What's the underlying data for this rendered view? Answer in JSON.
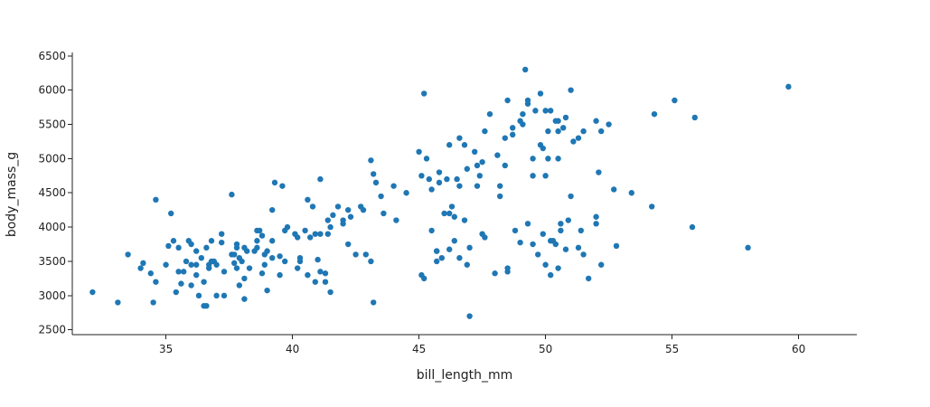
{
  "colors": {
    "marker": "#1f77b4",
    "axis": "#222222",
    "background": "#ffffff"
  },
  "chart_data": {
    "type": "scatter",
    "title": "",
    "xlabel": "bill_length_mm",
    "ylabel": "body_mass_g",
    "xlim": [
      31.3,
      62.3
    ],
    "ylim": [
      2430,
      6550
    ],
    "xticks": [
      35,
      40,
      45,
      50,
      55,
      60
    ],
    "yticks": [
      2500,
      3000,
      3500,
      4000,
      4500,
      5000,
      5500,
      6000,
      6500
    ],
    "grid": false,
    "series": [
      {
        "points": [
          [
            32.1,
            3050
          ],
          [
            33.1,
            2900
          ],
          [
            33.5,
            3600
          ],
          [
            34.0,
            3400
          ],
          [
            34.1,
            3475
          ],
          [
            34.4,
            3325
          ],
          [
            34.5,
            2900
          ],
          [
            34.6,
            3200
          ],
          [
            34.6,
            4400
          ],
          [
            35.0,
            3450
          ],
          [
            35.1,
            3725
          ],
          [
            35.2,
            4200
          ],
          [
            35.3,
            3800
          ],
          [
            35.4,
            3050
          ],
          [
            35.5,
            3700
          ],
          [
            35.6,
            3175
          ],
          [
            35.7,
            3350
          ],
          [
            35.8,
            3500
          ],
          [
            35.9,
            3800
          ],
          [
            36.0,
            3150
          ],
          [
            36.0,
            3450
          ],
          [
            36.2,
            3300
          ],
          [
            36.2,
            3650
          ],
          [
            36.3,
            3000
          ],
          [
            36.4,
            3550
          ],
          [
            36.5,
            3200
          ],
          [
            36.5,
            2850
          ],
          [
            36.6,
            3700
          ],
          [
            36.6,
            2850
          ],
          [
            36.7,
            3400
          ],
          [
            36.7,
            3450
          ],
          [
            36.8,
            3800
          ],
          [
            36.8,
            3500
          ],
          [
            36.9,
            3500
          ],
          [
            37.0,
            3000
          ],
          [
            37.2,
            3900
          ],
          [
            37.2,
            3775
          ],
          [
            37.3,
            3350
          ],
          [
            37.3,
            3000
          ],
          [
            37.6,
            4475
          ],
          [
            37.6,
            3600
          ],
          [
            37.7,
            3600
          ],
          [
            37.7,
            3475
          ],
          [
            37.8,
            3700
          ],
          [
            37.8,
            3400
          ],
          [
            37.8,
            3750
          ],
          [
            37.9,
            3150
          ],
          [
            37.9,
            3550
          ],
          [
            38.0,
            3500
          ],
          [
            38.1,
            3700
          ],
          [
            38.1,
            3250
          ],
          [
            38.1,
            2950
          ],
          [
            38.2,
            3650
          ],
          [
            38.3,
            3400
          ],
          [
            38.5,
            3650
          ],
          [
            38.6,
            3800
          ],
          [
            38.6,
            3950
          ],
          [
            38.7,
            3950
          ],
          [
            38.8,
            3325
          ],
          [
            38.8,
            3875
          ],
          [
            38.9,
            3600
          ],
          [
            39.0,
            3650
          ],
          [
            39.2,
            4250
          ],
          [
            39.2,
            3550
          ],
          [
            39.2,
            3800
          ],
          [
            39.3,
            4650
          ],
          [
            39.5,
            3575
          ],
          [
            39.6,
            4600
          ],
          [
            39.7,
            3950
          ],
          [
            39.8,
            4000
          ],
          [
            40.1,
            3900
          ],
          [
            40.2,
            3400
          ],
          [
            40.3,
            3550
          ],
          [
            40.5,
            3950
          ],
          [
            40.6,
            4400
          ],
          [
            40.7,
            3850
          ],
          [
            40.8,
            4300
          ],
          [
            40.9,
            3200
          ],
          [
            41.0,
            3525
          ],
          [
            41.1,
            4700
          ],
          [
            41.1,
            3350
          ],
          [
            41.3,
            3325
          ],
          [
            41.4,
            4100
          ],
          [
            41.5,
            3050
          ],
          [
            41.6,
            4175
          ],
          [
            41.8,
            4300
          ],
          [
            42.0,
            4050
          ],
          [
            42.2,
            4250
          ],
          [
            42.3,
            4150
          ],
          [
            42.5,
            3600
          ],
          [
            42.7,
            4300
          ],
          [
            42.8,
            4250
          ],
          [
            42.9,
            3600
          ],
          [
            43.1,
            4975
          ],
          [
            43.2,
            2900
          ],
          [
            43.2,
            4775
          ],
          [
            43.3,
            4650
          ],
          [
            43.5,
            4450
          ],
          [
            43.6,
            4200
          ],
          [
            44.1,
            4100
          ],
          [
            44.5,
            4500
          ],
          [
            45.1,
            4750
          ],
          [
            45.2,
            5950
          ],
          [
            45.2,
            3250
          ],
          [
            45.4,
            4700
          ],
          [
            45.5,
            3950
          ],
          [
            45.7,
            3650
          ],
          [
            45.8,
            4650
          ],
          [
            46.1,
            4700
          ],
          [
            46.2,
            4200
          ],
          [
            46.4,
            4150
          ],
          [
            46.5,
            4700
          ],
          [
            46.6,
            4600
          ],
          [
            46.8,
            4100
          ],
          [
            47.0,
            2700
          ],
          [
            47.2,
            5100
          ],
          [
            47.3,
            4900
          ],
          [
            47.5,
            3900
          ],
          [
            47.6,
            5400
          ],
          [
            47.8,
            5650
          ],
          [
            48.1,
            5050
          ],
          [
            48.2,
            4450
          ],
          [
            48.4,
            5300
          ],
          [
            48.5,
            3400
          ],
          [
            48.7,
            5350
          ],
          [
            48.8,
            3950
          ],
          [
            49.0,
            5550
          ],
          [
            49.1,
            5500
          ],
          [
            49.2,
            6300
          ],
          [
            49.3,
            5800
          ],
          [
            49.5,
            4750
          ],
          [
            49.6,
            5700
          ],
          [
            49.8,
            5950
          ],
          [
            50.0,
            5700
          ],
          [
            50.1,
            5000
          ],
          [
            50.2,
            3800
          ],
          [
            50.3,
            3800
          ],
          [
            50.4,
            5550
          ],
          [
            50.5,
            5400
          ],
          [
            50.6,
            4050
          ],
          [
            50.7,
            5450
          ],
          [
            50.8,
            5600
          ],
          [
            51.0,
            6000
          ],
          [
            51.1,
            5250
          ],
          [
            51.3,
            5300
          ],
          [
            51.5,
            5400
          ],
          [
            51.7,
            3250
          ],
          [
            52.0,
            5550
          ],
          [
            52.1,
            4800
          ],
          [
            52.2,
            5400
          ],
          [
            52.5,
            5500
          ],
          [
            52.7,
            4550
          ],
          [
            52.8,
            3725
          ],
          [
            53.4,
            4500
          ],
          [
            54.2,
            4300
          ],
          [
            54.3,
            5650
          ],
          [
            55.1,
            5850
          ],
          [
            55.8,
            4000
          ],
          [
            55.9,
            5600
          ],
          [
            58.0,
            3700
          ],
          [
            59.6,
            6050
          ],
          [
            44.0,
            4600
          ],
          [
            45.0,
            5100
          ],
          [
            45.3,
            5000
          ],
          [
            45.5,
            4550
          ],
          [
            45.8,
            4800
          ],
          [
            46.2,
            5200
          ],
          [
            46.6,
            5300
          ],
          [
            46.9,
            4850
          ],
          [
            47.3,
            4600
          ],
          [
            47.5,
            4950
          ],
          [
            48.2,
            4600
          ],
          [
            48.4,
            4900
          ],
          [
            48.7,
            5450
          ],
          [
            49.1,
            5650
          ],
          [
            49.5,
            5000
          ],
          [
            49.9,
            5150
          ],
          [
            50.1,
            5400
          ],
          [
            50.2,
            5700
          ],
          [
            50.5,
            5550
          ],
          [
            46.0,
            4200
          ],
          [
            46.3,
            4300
          ],
          [
            46.8,
            5200
          ],
          [
            47.4,
            4750
          ],
          [
            48.5,
            5850
          ],
          [
            49.8,
            5200
          ],
          [
            50.0,
            4750
          ],
          [
            50.5,
            5000
          ],
          [
            51.0,
            4450
          ],
          [
            49.3,
            5850
          ],
          [
            45.1,
            3300
          ],
          [
            45.7,
            3500
          ],
          [
            45.9,
            3550
          ],
          [
            46.2,
            3675
          ],
          [
            46.4,
            3800
          ],
          [
            46.6,
            3550
          ],
          [
            46.9,
            3450
          ],
          [
            47.0,
            3700
          ],
          [
            48.0,
            3325
          ],
          [
            48.5,
            3350
          ],
          [
            49.0,
            3775
          ],
          [
            49.3,
            4050
          ],
          [
            49.5,
            3750
          ],
          [
            49.7,
            3600
          ],
          [
            49.9,
            3900
          ],
          [
            50.0,
            3450
          ],
          [
            50.2,
            3300
          ],
          [
            50.4,
            3750
          ],
          [
            50.5,
            3400
          ],
          [
            50.6,
            3950
          ],
          [
            50.8,
            3675
          ],
          [
            50.9,
            4100
          ],
          [
            51.3,
            3700
          ],
          [
            51.5,
            3600
          ],
          [
            52.0,
            4150
          ],
          [
            52.2,
            3450
          ],
          [
            51.4,
            3950
          ],
          [
            52.0,
            4050
          ],
          [
            45.7,
            3650
          ],
          [
            47.6,
            3850
          ],
          [
            40.9,
            3900
          ],
          [
            39.5,
            3300
          ],
          [
            41.1,
            3900
          ],
          [
            40.2,
            3850
          ],
          [
            38.6,
            3700
          ],
          [
            42.0,
            4100
          ],
          [
            41.5,
            4000
          ],
          [
            39.7,
            3500
          ],
          [
            42.2,
            3750
          ],
          [
            43.1,
            3500
          ],
          [
            39.0,
            3075
          ],
          [
            37.0,
            3450
          ],
          [
            36.0,
            3750
          ],
          [
            38.9,
            3450
          ],
          [
            40.6,
            3300
          ],
          [
            41.4,
            3900
          ],
          [
            35.5,
            3350
          ],
          [
            36.2,
            3450
          ],
          [
            40.3,
            3500
          ],
          [
            41.3,
            3200
          ]
        ]
      }
    ]
  }
}
